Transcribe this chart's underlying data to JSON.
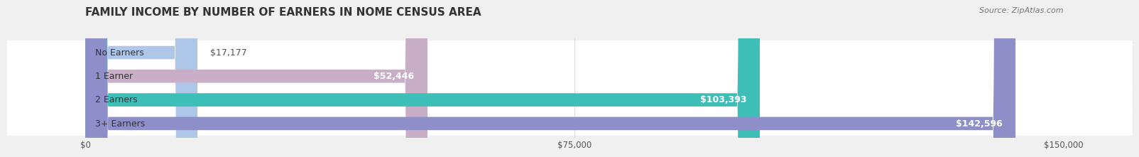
{
  "title": "FAMILY INCOME BY NUMBER OF EARNERS IN NOME CENSUS AREA",
  "source": "Source: ZipAtlas.com",
  "categories": [
    "No Earners",
    "1 Earner",
    "2 Earners",
    "3+ Earners"
  ],
  "values": [
    17177,
    52446,
    103393,
    142596
  ],
  "bar_colors": [
    "#aec6e8",
    "#c9aec8",
    "#3dbfb8",
    "#8e8ec8"
  ],
  "label_colors": [
    "#555555",
    "#555555",
    "#ffffff",
    "#ffffff"
  ],
  "xlim": [
    0,
    150000
  ],
  "xticks": [
    0,
    75000,
    150000
  ],
  "xtick_labels": [
    "$0",
    "$75,000",
    "$150,000"
  ],
  "bar_height": 0.55,
  "background_color": "#f0f0f0",
  "row_bg_colors": [
    "#f8f8f8",
    "#f0f0f0"
  ],
  "title_fontsize": 11,
  "label_fontsize": 9,
  "value_fontsize": 9
}
